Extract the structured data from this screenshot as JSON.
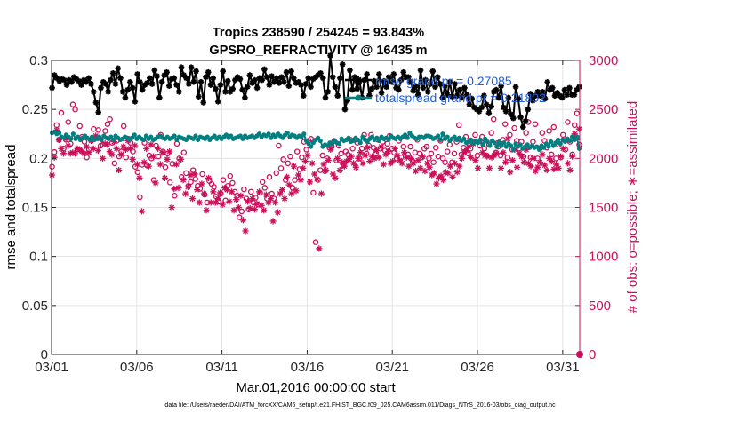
{
  "chart_data": {
    "type": "line",
    "title": "Tropics 238590 / 254245 = 93.843%",
    "subtitle": "GPSRO_REFRACTIVITY @ 16435 m",
    "xlabel": "Mar.01,2016 00:00:00 start",
    "ylabel": "rmse and totalspread",
    "y2label": "# of obs: o=possible; ∗=assimilated",
    "x_ticks": [
      "03/01",
      "03/06",
      "03/11",
      "03/16",
      "03/21",
      "03/26",
      "03/31"
    ],
    "x_tick_days": [
      1,
      6,
      11,
      16,
      21,
      26,
      31
    ],
    "x_range_days": [
      1,
      32
    ],
    "y_ticks": [
      "0",
      "0.05",
      "0.1",
      "0.15",
      "0.2",
      "0.25",
      "0.3"
    ],
    "y_tick_values": [
      0,
      0.05,
      0.1,
      0.15,
      0.2,
      0.25,
      0.3
    ],
    "ylim": [
      0,
      0.3
    ],
    "y2_ticks": [
      "0",
      "500",
      "1000",
      "1500",
      "2000",
      "2500",
      "3000"
    ],
    "y2_tick_values": [
      0,
      500,
      1000,
      1500,
      2000,
      2500,
      3000
    ],
    "y2lim": [
      0,
      3000
    ],
    "grid": true,
    "legend_position": "top-right",
    "footnote": "data file: /Users/raeder/DAI/ATM_forcXX/CAM6_setup/f.e21.FHIST_BGC.f09_025.CAM6assim.011/Diags_NTrS_2016-03/obs_diag_output.nc",
    "colors": {
      "rmse": "#000000",
      "spread": "#008080",
      "obs": "#cc0f5a",
      "legend_text": "#1f5fe0"
    },
    "series": [
      {
        "name": "rmse grand pr = 0.27085",
        "axis": "left",
        "marker": "star",
        "values": [
          0.272,
          0.285,
          0.282,
          0.279,
          0.281,
          0.28,
          0.275,
          0.28,
          0.278,
          0.283,
          0.281,
          0.279,
          0.275,
          0.28,
          0.278,
          0.282,
          0.276,
          0.268,
          0.257,
          0.247,
          0.272,
          0.278,
          0.276,
          0.268,
          0.28,
          0.287,
          0.276,
          0.292,
          0.282,
          0.268,
          0.262,
          0.27,
          0.278,
          0.272,
          0.258,
          0.286,
          0.278,
          0.27,
          0.275,
          0.277,
          0.282,
          0.276,
          0.29,
          0.284,
          0.262,
          0.278,
          0.285,
          0.288,
          0.274,
          0.281,
          0.282,
          0.275,
          0.268,
          0.293,
          0.285,
          0.282,
          0.276,
          0.293,
          0.278,
          0.289,
          0.263,
          0.278,
          0.257,
          0.283,
          0.288,
          0.275,
          0.282,
          0.271,
          0.258,
          0.275,
          0.289,
          0.268,
          0.279,
          0.268,
          0.271,
          0.28,
          0.283,
          0.281,
          0.27,
          0.262,
          0.273,
          0.285,
          0.277,
          0.28,
          0.272,
          0.282,
          0.28,
          0.291,
          0.283,
          0.275,
          0.284,
          0.278,
          0.282,
          0.277,
          0.283,
          0.278,
          0.288,
          0.274,
          0.289,
          0.282,
          0.277,
          0.278,
          0.275,
          0.264,
          0.276,
          0.282,
          0.273,
          0.281,
          0.283,
          0.285,
          0.287,
          0.282,
          0.262,
          0.268,
          0.305,
          0.283,
          0.273,
          0.264,
          0.282,
          0.296,
          0.25,
          0.259,
          0.29,
          0.27,
          0.283,
          0.271,
          0.279,
          0.262,
          0.28,
          0.286,
          0.264,
          0.271,
          0.279,
          0.273,
          0.286,
          0.267,
          0.279,
          0.273,
          0.283,
          0.279,
          0.286,
          0.272,
          0.27,
          0.28,
          0.288,
          0.283,
          0.283,
          0.278,
          0.269,
          0.274,
          0.265,
          0.29,
          0.272,
          0.28,
          0.268,
          0.276,
          0.289,
          0.273,
          0.283,
          0.276,
          0.262,
          0.274,
          0.265,
          0.278,
          0.263,
          0.276,
          0.264,
          0.27,
          0.262,
          0.272,
          0.265,
          0.255,
          0.261,
          0.252,
          0.25,
          0.248,
          0.252,
          0.264,
          0.255,
          0.246,
          0.253,
          0.268,
          0.27,
          0.262,
          0.274,
          0.252,
          0.248,
          0.262,
          0.245,
          0.241,
          0.273,
          0.261,
          0.242,
          0.232,
          0.238,
          0.25,
          0.266,
          0.259,
          0.264,
          0.268,
          0.264,
          0.268,
          0.261,
          0.278,
          0.27,
          0.272,
          0.264,
          0.267,
          0.264,
          0.262,
          0.27,
          0.265,
          0.272,
          0.265,
          0.265,
          0.27,
          0.273
        ]
      },
      {
        "name": "totalspread grand pr = 0.21802",
        "axis": "left",
        "marker": "dot",
        "values": [
          0.226,
          0.227,
          0.225,
          0.226,
          0.222,
          0.221,
          0.224,
          0.222,
          0.22,
          0.225,
          0.22,
          0.222,
          0.219,
          0.221,
          0.223,
          0.221,
          0.219,
          0.222,
          0.219,
          0.22,
          0.222,
          0.219,
          0.223,
          0.221,
          0.22,
          0.222,
          0.219,
          0.223,
          0.221,
          0.219,
          0.22,
          0.222,
          0.221,
          0.219,
          0.221,
          0.224,
          0.22,
          0.222,
          0.22,
          0.219,
          0.223,
          0.22,
          0.222,
          0.219,
          0.22,
          0.222,
          0.223,
          0.221,
          0.22,
          0.222,
          0.22,
          0.221,
          0.223,
          0.219,
          0.222,
          0.221,
          0.22,
          0.219,
          0.222,
          0.221,
          0.22,
          0.223,
          0.219,
          0.222,
          0.221,
          0.22,
          0.222,
          0.219,
          0.221,
          0.223,
          0.22,
          0.222,
          0.22,
          0.222,
          0.224,
          0.221,
          0.223,
          0.22,
          0.221,
          0.222,
          0.223,
          0.22,
          0.223,
          0.221,
          0.222,
          0.223,
          0.221,
          0.223,
          0.225,
          0.222,
          0.224,
          0.223,
          0.225,
          0.221,
          0.224,
          0.222,
          0.225,
          0.223,
          0.221,
          0.224,
          0.226,
          0.222,
          0.224,
          0.223,
          0.221,
          0.223,
          0.222,
          0.225,
          0.218,
          0.215,
          0.212,
          0.216,
          0.219,
          0.221,
          0.218,
          0.212,
          0.214,
          0.213,
          0.216,
          0.215,
          0.218,
          0.216,
          0.215,
          0.22,
          0.218,
          0.219,
          0.221,
          0.217,
          0.218,
          0.221,
          0.219,
          0.216,
          0.222,
          0.219,
          0.217,
          0.22,
          0.222,
          0.219,
          0.221,
          0.218,
          0.222,
          0.22,
          0.221,
          0.219,
          0.223,
          0.221,
          0.22,
          0.222,
          0.22,
          0.222,
          0.224,
          0.221,
          0.226,
          0.223,
          0.221,
          0.22,
          0.222,
          0.222,
          0.221,
          0.223,
          0.223,
          0.222,
          0.22,
          0.221,
          0.223,
          0.219,
          0.225,
          0.22,
          0.222,
          0.218,
          0.22,
          0.222,
          0.219,
          0.221,
          0.218,
          0.22,
          0.216,
          0.217,
          0.219,
          0.215,
          0.218,
          0.216,
          0.219,
          0.214,
          0.22,
          0.217,
          0.213,
          0.218,
          0.216,
          0.212,
          0.217,
          0.213,
          0.216,
          0.212,
          0.215,
          0.213,
          0.209,
          0.215,
          0.212,
          0.214,
          0.21,
          0.212,
          0.214,
          0.211,
          0.213,
          0.211,
          0.212,
          0.209,
          0.213,
          0.211,
          0.215,
          0.212,
          0.217,
          0.213,
          0.216,
          0.219,
          0.215,
          0.219,
          0.217,
          0.22,
          0.218,
          0.222,
          0.219,
          0.222,
          0.21
        ]
      },
      {
        "name": "# of obs possible",
        "axis": "right",
        "marker": "circle",
        "values": [
          1915,
          2065,
          2340,
          2190,
          2465,
          2100,
          2190,
          2370,
          2150,
          2550,
          2500,
          2090,
          2330,
          2220,
          2170,
          2010,
          2090,
          2190,
          2300,
          2210,
          2290,
          2130,
          2140,
          2280,
          2350,
          2400,
          2160,
          1950,
          2180,
          2020,
          2070,
          2330,
          2010,
          2200,
          2160,
          2070,
          1915,
          1860,
          1605,
          1935,
          2160,
          1930,
          2030,
          2000,
          1780,
          2130,
          2020,
          2240,
          2070,
          1910,
          2050,
          1755,
          1945,
          1620,
          2150,
          2000,
          1810,
          2060,
          1850,
          1720,
          1760,
          1880,
          1790,
          1720,
          1690,
          1840,
          1630,
          1550,
          1770,
          1740,
          1710,
          1610,
          1560,
          1640,
          1780,
          1570,
          1720,
          1820,
          1750,
          1660,
          1620,
          1400,
          1460,
          1685,
          1590,
          1480,
          1660,
          1550,
          1600,
          1530,
          1650,
          1760,
          1700,
          1590,
          1810,
          1640,
          1590,
          1850,
          2130,
          1900,
          1990,
          1780,
          1950,
          2020,
          1700,
          1780,
          2070,
          1890,
          2010,
          2170,
          2090,
          2180,
          2200,
          1650,
          1145,
          1780,
          1880,
          2030,
          1870,
          2000,
          2110,
          2120,
          2180,
          1980,
          2130,
          2050,
          1930,
          2070,
          2040,
          2190,
          2100,
          2190,
          2160,
          2000,
          2100,
          2240,
          2050,
          2130,
          2240,
          2110,
          2050,
          2190,
          2100,
          2170,
          2080,
          2150,
          2230,
          2100,
          2060,
          2000,
          2180,
          2010,
          2120,
          2220,
          2040,
          2120,
          1970,
          2060,
          2190,
          2050,
          2010,
          2100,
          2120,
          2000,
          2050,
          1960,
          2110,
          2020,
          2180,
          2000,
          1960,
          2070,
          2140,
          1960,
          2050,
          2170,
          2340,
          2040,
          2110,
          2220,
          2050,
          2100,
          2160,
          2240,
          2030,
          2130,
          2220,
          2100,
          2030,
          2140,
          2260,
          2400,
          2060,
          2120,
          2030,
          2190,
          2350,
          2010,
          2240,
          2090,
          2310,
          2180,
          2100,
          2170,
          2020,
          2260,
          2370,
          2010,
          2170,
          2350,
          2000,
          2100,
          2260,
          2180,
          2110,
          2280,
          2040,
          2320,
          2000,
          2140,
          2010,
          2240,
          2090,
          2370,
          2170,
          2040,
          2340,
          2460,
          2140
        ]
      },
      {
        "name": "# of obs assimilated",
        "axis": "right",
        "marker": "star",
        "values": [
          1830,
          2010,
          2290,
          2190,
          2100,
          2050,
          2200,
          2130,
          2050,
          2060,
          2050,
          2100,
          2090,
          2070,
          2050,
          2120,
          2060,
          2180,
          2100,
          2230,
          2080,
          2200,
          2000,
          2150,
          2140,
          2070,
          2040,
          2170,
          2100,
          1880,
          2040,
          2120,
          2090,
          2180,
          2100,
          1990,
          2130,
          1940,
          1800,
          1460,
          1960,
          2100,
          1920,
          2140,
          2020,
          1750,
          2100,
          1940,
          2060,
          1800,
          1990,
          2070,
          1500,
          1690,
          1940,
          1700,
          1990,
          1780,
          1640,
          1710,
          1830,
          1590,
          1840,
          1680,
          1550,
          1740,
          1640,
          1470,
          1800,
          1550,
          1660,
          1550,
          1590,
          1650,
          1530,
          1700,
          1680,
          1560,
          1660,
          1470,
          1580,
          1500,
          1620,
          1370,
          1260,
          1560,
          1490,
          1590,
          1480,
          1540,
          1660,
          1520,
          1470,
          1630,
          1550,
          1590,
          1360,
          1550,
          1450,
          1640,
          1680,
          1590,
          1810,
          1730,
          1640,
          1920,
          1670,
          1830,
          1780,
          1900,
          1970,
          2030,
          1760,
          1950,
          1840,
          1790,
          1080,
          1640,
          1940,
          1880,
          1980,
          2090,
          1840,
          1800,
          2000,
          1880,
          1960,
          1920,
          1970,
          1990,
          2020,
          1950,
          1910,
          2000,
          2060,
          1950,
          2030,
          2110,
          1970,
          2020,
          2000,
          2080,
          2010,
          2120,
          1940,
          2040,
          2070,
          1950,
          1970,
          2100,
          2030,
          1980,
          1950,
          2060,
          2010,
          1920,
          2000,
          1950,
          1870,
          1980,
          1900,
          2020,
          1870,
          1950,
          1910,
          1830,
          1850,
          1740,
          1800,
          1820,
          1780,
          1860,
          1850,
          1920,
          1810,
          1950,
          1860,
          1920,
          2000,
          2060,
          2080,
          2120,
          2010,
          2150,
          1980,
          1900,
          2180,
          2060,
          2030,
          2020,
          1900,
          2010,
          2030,
          2050,
          2160,
          1900,
          2060,
          1960,
          2200,
          1860,
          1980,
          2090,
          1910,
          2050,
          2020,
          1960,
          2090,
          1950,
          1920,
          2000,
          1870,
          1910,
          1960,
          2040,
          1930,
          1880,
          2000,
          1970,
          1890,
          1940,
          1900,
          2020,
          2100,
          2190,
          1950,
          1880,
          2020,
          2250,
          2210,
          2300
        ]
      }
    ]
  }
}
